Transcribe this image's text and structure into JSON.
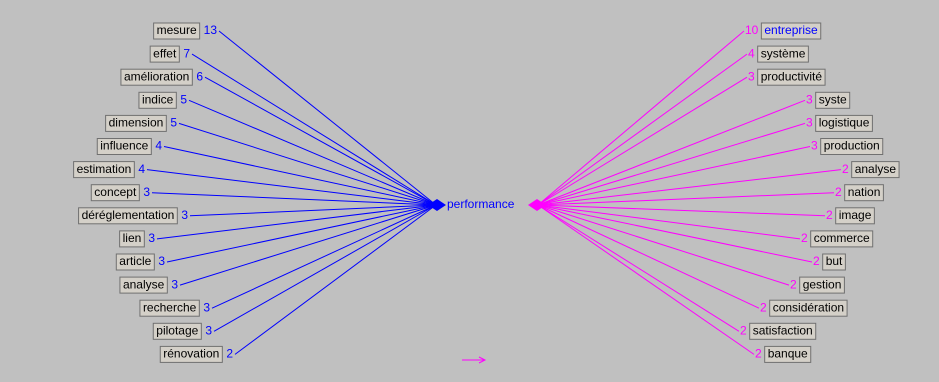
{
  "center": "performance",
  "left": [
    {
      "word": "mesure",
      "count": 13
    },
    {
      "word": "effet",
      "count": 7
    },
    {
      "word": "amélioration",
      "count": 6
    },
    {
      "word": "indice",
      "count": 5
    },
    {
      "word": "dimension",
      "count": 5
    },
    {
      "word": "influence",
      "count": 4
    },
    {
      "word": "estimation",
      "count": 4
    },
    {
      "word": "concept",
      "count": 3
    },
    {
      "word": "déréglementation",
      "count": 3
    },
    {
      "word": "lien",
      "count": 3
    },
    {
      "word": "article",
      "count": 3
    },
    {
      "word": "analyse",
      "count": 3
    },
    {
      "word": "recherche",
      "count": 3
    },
    {
      "word": "pilotage",
      "count": 3
    },
    {
      "word": "rénovation",
      "count": 2
    }
  ],
  "right": [
    {
      "word": "entreprise",
      "count": 10
    },
    {
      "word": "système",
      "count": 4
    },
    {
      "word": "productivité",
      "count": 3
    },
    {
      "word": "syste",
      "count": 3
    },
    {
      "word": "logistique",
      "count": 3
    },
    {
      "word": "production",
      "count": 3
    },
    {
      "word": "analyse",
      "count": 2
    },
    {
      "word": "nation",
      "count": 2
    },
    {
      "word": "image",
      "count": 2
    },
    {
      "word": "commerce",
      "count": 2
    },
    {
      "word": "but",
      "count": 2
    },
    {
      "word": "gestion",
      "count": 2
    },
    {
      "word": "considération",
      "count": 2
    },
    {
      "word": "satisfaction",
      "count": 2
    },
    {
      "word": "banque",
      "count": 2
    }
  ]
}
